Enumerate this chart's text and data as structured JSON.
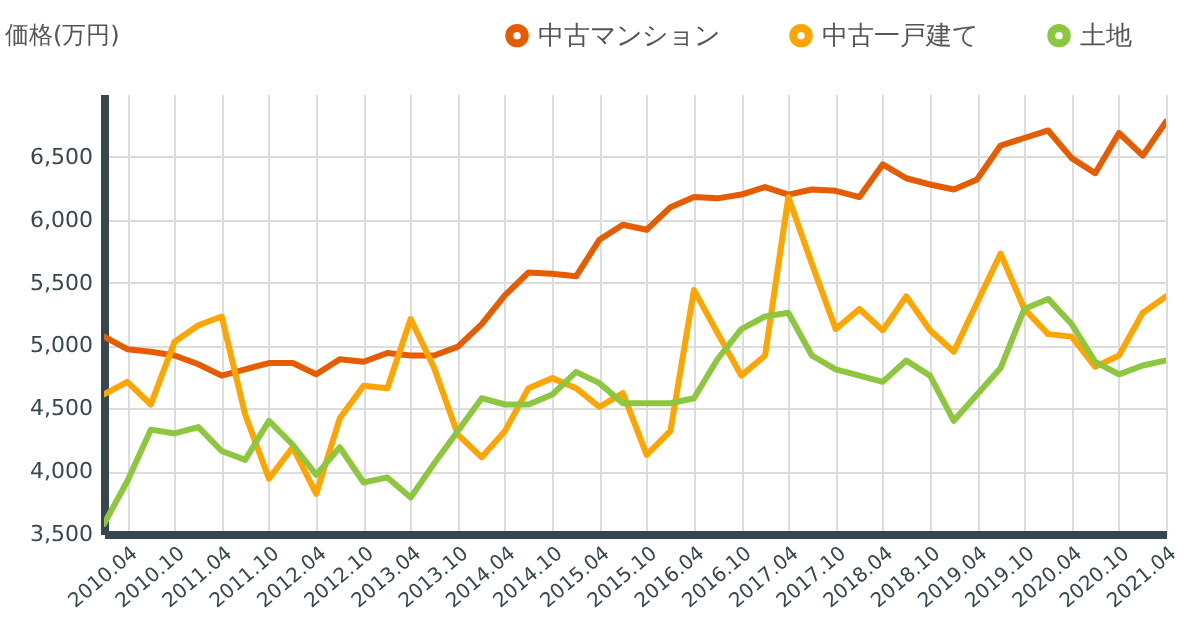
{
  "chart_data": {
    "type": "line",
    "ylabel": "価格(万円)",
    "x": [
      "2010-01",
      "2010-04",
      "2010-07",
      "2010-10",
      "2011-01",
      "2011-04",
      "2011-07",
      "2011-10",
      "2012-01",
      "2012-04",
      "2012-07",
      "2012-10",
      "2013-01",
      "2013-04",
      "2013-07",
      "2013-10",
      "2014-01",
      "2014-04",
      "2014-07",
      "2014-10",
      "2015-01",
      "2015-04",
      "2015-07",
      "2015-10",
      "2016-01",
      "2016-04",
      "2016-07",
      "2016-10",
      "2017-01",
      "2017-04",
      "2017-07",
      "2017-10",
      "2018-01",
      "2018-04",
      "2018-07",
      "2018-10",
      "2019-01",
      "2019-04",
      "2019-07",
      "2019-10",
      "2020-01",
      "2020-04",
      "2020-07",
      "2020-10",
      "2021-01",
      "2021-04"
    ],
    "series": [
      {
        "name": "中古マンション",
        "color": "#e65c00",
        "values": [
          5070,
          4970,
          4950,
          4920,
          4850,
          4760,
          4810,
          4860,
          4860,
          4770,
          4890,
          4870,
          4940,
          4920,
          4920,
          4990,
          5170,
          5400,
          5580,
          5570,
          5550,
          5840,
          5960,
          5920,
          6100,
          6180,
          6170,
          6200,
          6260,
          6200,
          6240,
          6230,
          6180,
          6440,
          6330,
          6280,
          6240,
          6320,
          6590,
          6650,
          6710,
          6490,
          6370,
          6690,
          6510,
          6780
        ]
      },
      {
        "name": "中古一戸建て",
        "color": "#ffa500",
        "values": [
          4610,
          4710,
          4530,
          5030,
          5160,
          5230,
          4450,
          3940,
          4190,
          3820,
          4420,
          4680,
          4660,
          5210,
          4820,
          4290,
          4110,
          4320,
          4660,
          4740,
          4660,
          4510,
          4620,
          4130,
          4320,
          5440,
          5100,
          4760,
          4920,
          6180,
          5650,
          5130,
          5290,
          5120,
          5390,
          5120,
          4950,
          5340,
          5730,
          5290,
          5090,
          5070,
          4830,
          4920,
          5260,
          5390
        ]
      },
      {
        "name": "土地",
        "color": "#8dc63f",
        "values": [
          3580,
          3920,
          4330,
          4300,
          4350,
          4160,
          4090,
          4400,
          4210,
          3970,
          4190,
          3910,
          3950,
          3790,
          4060,
          4320,
          4580,
          4530,
          4530,
          4610,
          4790,
          4700,
          4540,
          4540,
          4540,
          4580,
          4890,
          5130,
          5230,
          5260,
          4920,
          4810,
          4760,
          4710,
          4880,
          4760,
          4400,
          4610,
          4820,
          5290,
          5370,
          5170,
          4870,
          4770,
          4840,
          4880
        ]
      }
    ],
    "xlim": [
      "2010-01",
      "2021-04"
    ],
    "xticks": [
      {
        "value": "2010-04",
        "label": "2010.04"
      },
      {
        "value": "2010-10",
        "label": "2010.10"
      },
      {
        "value": "2011-04",
        "label": "2011.04"
      },
      {
        "value": "2011-10",
        "label": "2011.10"
      },
      {
        "value": "2012-04",
        "label": "2012.04"
      },
      {
        "value": "2012-10",
        "label": "2012.10"
      },
      {
        "value": "2013-04",
        "label": "2013.04"
      },
      {
        "value": "2013-10",
        "label": "2013.10"
      },
      {
        "value": "2014-04",
        "label": "2014.04"
      },
      {
        "value": "2014-10",
        "label": "2014.10"
      },
      {
        "value": "2015-04",
        "label": "2015.04"
      },
      {
        "value": "2015-10",
        "label": "2015.10"
      },
      {
        "value": "2016-04",
        "label": "2016.04"
      },
      {
        "value": "2016-10",
        "label": "2016.10"
      },
      {
        "value": "2017-04",
        "label": "2017.04"
      },
      {
        "value": "2017-10",
        "label": "2017.10"
      },
      {
        "value": "2018-04",
        "label": "2018.04"
      },
      {
        "value": "2018-10",
        "label": "2018.10"
      },
      {
        "value": "2019-04",
        "label": "2019.04"
      },
      {
        "value": "2019-10",
        "label": "2019.10"
      },
      {
        "value": "2020-04",
        "label": "2020.04"
      },
      {
        "value": "2020-10",
        "label": "2020.10"
      },
      {
        "value": "2021-04",
        "label": "2021.04"
      }
    ],
    "ylim": [
      3500,
      7000
    ],
    "yticks": [
      {
        "value": 3500,
        "label": "3,500"
      },
      {
        "value": 4000,
        "label": "4,000"
      },
      {
        "value": 4500,
        "label": "4,500"
      },
      {
        "value": 5000,
        "label": "5,000"
      },
      {
        "value": 5500,
        "label": "5,500"
      },
      {
        "value": 6000,
        "label": "6,000"
      },
      {
        "value": 6500,
        "label": "6,500"
      }
    ],
    "grid": true,
    "legend": "top right",
    "line_style": "solid"
  }
}
